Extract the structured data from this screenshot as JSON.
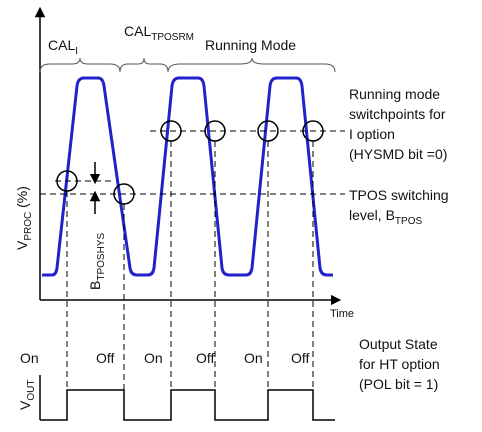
{
  "phases": {
    "cal_i": {
      "main": "CAL",
      "sub": "I"
    },
    "cal_tposrm": {
      "main": "CAL",
      "sub": "TPOSRM"
    },
    "running": "Running Mode"
  },
  "axes": {
    "y_main": "V",
    "y_sub": "PROC",
    "y_unit": " (%)",
    "x": "Time",
    "vout_main": "V",
    "vout_sub": "OUT"
  },
  "hysteresis": {
    "main": "B",
    "sub": "TPOSHYS"
  },
  "notes": {
    "switchpoints": [
      "Running mode",
      "switchpoints for",
      "I option",
      "(HYSMD bit =0)"
    ],
    "tpos": {
      "line1": "TPOS switching",
      "line2_main": "level, B",
      "line2_sub": "TPOS"
    },
    "output": [
      "Output State",
      "for HT option",
      "(POL bit = 1)"
    ]
  },
  "states": [
    "On",
    "Off",
    "On",
    "Off",
    "On",
    "Off"
  ]
}
